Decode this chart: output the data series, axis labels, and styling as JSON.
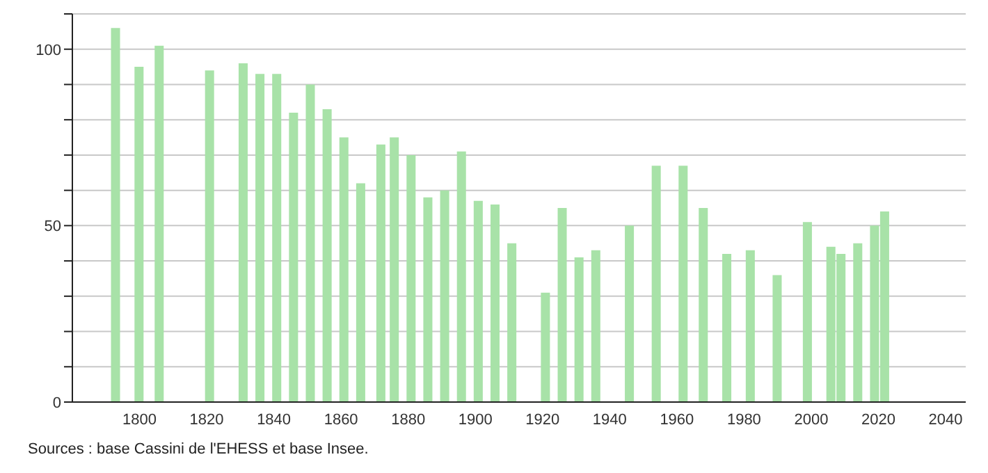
{
  "chart_data": {
    "type": "bar",
    "x": [
      1793,
      1800,
      1806,
      1821,
      1831,
      1836,
      1841,
      1846,
      1851,
      1856,
      1861,
      1866,
      1872,
      1876,
      1881,
      1886,
      1891,
      1896,
      1901,
      1906,
      1911,
      1921,
      1926,
      1931,
      1936,
      1946,
      1954,
      1962,
      1968,
      1975,
      1982,
      1990,
      1999,
      2006,
      2009,
      2014,
      2019,
      2022
    ],
    "values": [
      106,
      95,
      101,
      94,
      96,
      93,
      93,
      82,
      90,
      83,
      75,
      62,
      73,
      75,
      70,
      58,
      60,
      71,
      57,
      56,
      45,
      31,
      55,
      41,
      43,
      50,
      67,
      67,
      55,
      42,
      43,
      36,
      51,
      44,
      42,
      45,
      50,
      54
    ],
    "color": "#a8e2a8",
    "xlim": [
      1780,
      2046
    ],
    "xticks": [
      1800,
      1820,
      1840,
      1860,
      1880,
      1900,
      1920,
      1940,
      1960,
      1980,
      2000,
      2020,
      2040
    ],
    "ylim": [
      0,
      110
    ],
    "yticks": [
      0,
      {
        "value": 10,
        "label": null
      },
      {
        "value": 20,
        "label": null
      },
      {
        "value": 30,
        "label": null
      },
      {
        "value": 40,
        "label": null
      },
      50,
      {
        "value": 60,
        "label": null
      },
      {
        "value": 70,
        "label": null
      },
      {
        "value": 80,
        "label": null
      },
      {
        "value": 90,
        "label": null
      },
      100,
      {
        "value": 110,
        "label": null
      }
    ],
    "grid": "y",
    "annotations": [
      "Sources : base Cassini de l'EHESS et base Insee."
    ]
  }
}
